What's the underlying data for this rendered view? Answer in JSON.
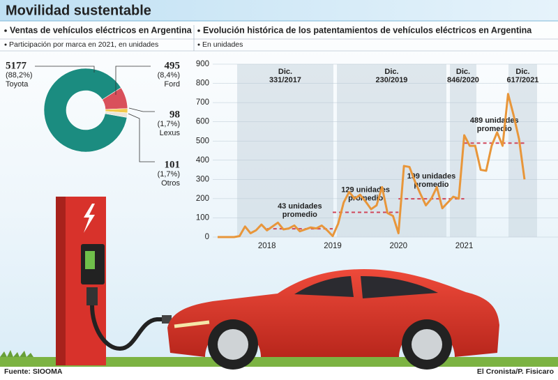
{
  "title": "Movilidad sustentable",
  "source": "Fuente: SIOOMA",
  "credit": "El Cronista/P. Fisicaro",
  "chart_data": [
    {
      "type": "pie",
      "title": "Ventas de vehículos eléctricos en Argentina",
      "subtitle": "Participación por marca en 2021, en unidades",
      "categories": [
        "Toyota",
        "Ford",
        "Lexus",
        "Otros"
      ],
      "values": [
        5177,
        495,
        98,
        101
      ],
      "percentage_labels": [
        "(88,2%)",
        "(8,4%)",
        "(1,7%)",
        "(1,7%)"
      ],
      "colors": [
        "#1b8c80",
        "#d9505b",
        "#f2c94c",
        "#e9e4d8"
      ]
    },
    {
      "type": "line",
      "title": "Evolución histórica de los patentamientos de vehículos eléctricos en Argentina",
      "subtitle": "En unidades",
      "categories": [
        null,
        null,
        null,
        null,
        null,
        null,
        null,
        null,
        null,
        "2018",
        null,
        null,
        null,
        null,
        null,
        null,
        null,
        null,
        null,
        null,
        null,
        "2019",
        null,
        null,
        null,
        null,
        null,
        null,
        null,
        null,
        null,
        null,
        null,
        "2020",
        null,
        null,
        null,
        null,
        null,
        null,
        null,
        null,
        null,
        null,
        null,
        "2021",
        null,
        null,
        null,
        null,
        null,
        null,
        null,
        null,
        null,
        null,
        null
      ],
      "values": [
        0,
        0,
        0,
        0,
        5,
        55,
        20,
        35,
        65,
        35,
        55,
        75,
        40,
        45,
        60,
        30,
        40,
        50,
        45,
        60,
        35,
        5,
        70,
        180,
        235,
        200,
        220,
        185,
        145,
        165,
        260,
        125,
        110,
        20,
        370,
        365,
        290,
        225,
        165,
        200,
        260,
        150,
        180,
        210,
        200,
        530,
        475,
        475,
        350,
        345,
        475,
        545,
        475,
        745,
        635,
        510,
        300
      ],
      "color": "#e8963a",
      "ylim": [
        0,
        900
      ],
      "yticks": [
        0,
        100,
        200,
        300,
        400,
        500,
        600,
        700,
        800,
        900
      ],
      "reference_lines": [
        {
          "value": 43,
          "label_lines": [
            "43 unidades",
            "promedio"
          ]
        },
        {
          "value": 129,
          "label_lines": [
            "129 unidades",
            "promedio"
          ]
        },
        {
          "value": 199,
          "label_lines": [
            "199 unidades",
            "promedio"
          ]
        },
        {
          "value": 489,
          "label_lines": [
            "489 unidades",
            "promedio"
          ]
        }
      ],
      "reference_color": "#d0465a",
      "annotations": [
        {
          "lines": [
            "Dic.",
            "331/2017"
          ]
        },
        {
          "lines": [
            "Dic.",
            "230/2019"
          ]
        },
        {
          "lines": [
            "Dic.",
            "846/2020"
          ]
        },
        {
          "lines": [
            "Dic.",
            "617/2021"
          ]
        }
      ]
    }
  ]
}
